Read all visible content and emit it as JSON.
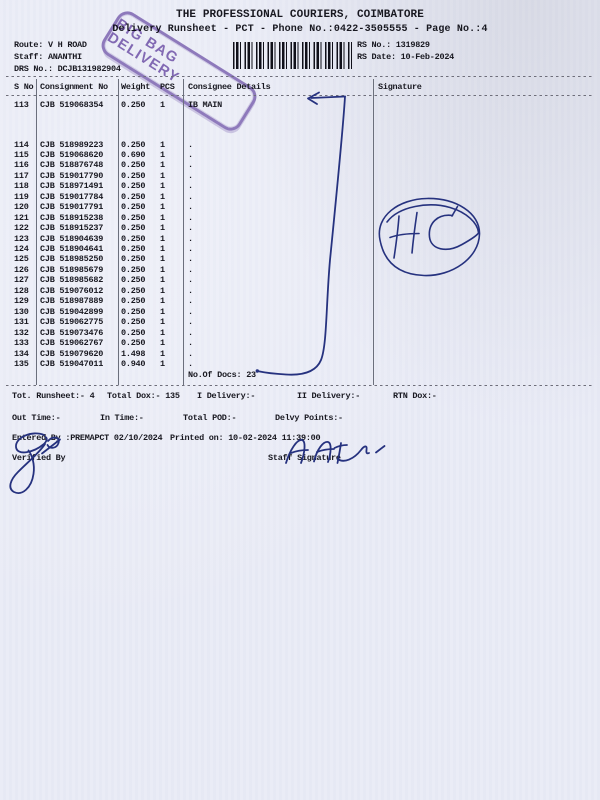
{
  "colors": {
    "paper": "#e9ebf6",
    "print_ink": "#181820",
    "pen_ink": "#26327f",
    "stamp_purple": "#7e60b2"
  },
  "header": {
    "title": "THE PROFESSIONAL COURIERS, COIMBATORE",
    "subtitle": "Delivery Runsheet - PCT - Phone No.:0422-3505555 - Page No.:4",
    "route": "Route: V H ROAD",
    "staff": "Staff: ANANTHI",
    "drs_no": "DRS No.: DCJB131982904",
    "rs_no": "RS No.: 1319829",
    "rs_date": "RS Date: 10-Feb-2024"
  },
  "stamp": {
    "text": "BIG BAG DELIVERY"
  },
  "table": {
    "headers": [
      "S No",
      "Consignment No",
      "Weight",
      "PCS",
      "Consignee Details",
      "Signature"
    ],
    "rows": [
      [
        "113",
        "CJB 519068354",
        "0.250",
        "1",
        "IB MAIN"
      ],
      [
        "114",
        "CJB 518989223",
        "0.250",
        "1",
        "."
      ],
      [
        "115",
        "CJB 519068620",
        "0.690",
        "1",
        "."
      ],
      [
        "116",
        "CJB 518876748",
        "0.250",
        "1",
        "."
      ],
      [
        "117",
        "CJB 519017790",
        "0.250",
        "1",
        "."
      ],
      [
        "118",
        "CJB 518971491",
        "0.250",
        "1",
        "."
      ],
      [
        "119",
        "CJB 519017784",
        "0.250",
        "1",
        "."
      ],
      [
        "120",
        "CJB 519017791",
        "0.250",
        "1",
        "."
      ],
      [
        "121",
        "CJB 518915238",
        "0.250",
        "1",
        "."
      ],
      [
        "122",
        "CJB 518915237",
        "0.250",
        "1",
        "."
      ],
      [
        "123",
        "CJB 518904639",
        "0.250",
        "1",
        "."
      ],
      [
        "124",
        "CJB 518904641",
        "0.250",
        "1",
        "."
      ],
      [
        "125",
        "CJB 518985250",
        "0.250",
        "1",
        "."
      ],
      [
        "126",
        "CJB 518985679",
        "0.250",
        "1",
        "."
      ],
      [
        "127",
        "CJB 518985682",
        "0.250",
        "1",
        "."
      ],
      [
        "128",
        "CJB 519076012",
        "0.250",
        "1",
        "."
      ],
      [
        "129",
        "CJB 518987889",
        "0.250",
        "1",
        "."
      ],
      [
        "130",
        "CJB 519042899",
        "0.250",
        "1",
        "."
      ],
      [
        "131",
        "CJB 519062775",
        "0.250",
        "1",
        "."
      ],
      [
        "132",
        "CJB 519073476",
        "0.250",
        "1",
        "."
      ],
      [
        "133",
        "CJB 519062767",
        "0.250",
        "1",
        "."
      ],
      [
        "134",
        "CJB 519079620",
        "1.498",
        "1",
        "."
      ],
      [
        "135",
        "CJB 519047011",
        "0.940",
        "1",
        "."
      ]
    ],
    "docs_note": "No.Of Docs: 23"
  },
  "annotations": {
    "hc_text": "HC"
  },
  "footer": {
    "line1": [
      "Tot. Runsheet:- 4",
      "Total Dox:- 135",
      "I Delivery:-",
      "II Delivery:-",
      "RTN Dox:-"
    ],
    "line2": [
      "Out Time:-",
      "In Time:-",
      "Total POD:-",
      "Delvy Points:-"
    ],
    "line3": [
      "Entered By :PREMAPCT 02/10/2024",
      "Printed on: 10-02-2024 11:39:00"
    ],
    "line4": [
      "Verified By",
      "Staff Signature"
    ]
  }
}
